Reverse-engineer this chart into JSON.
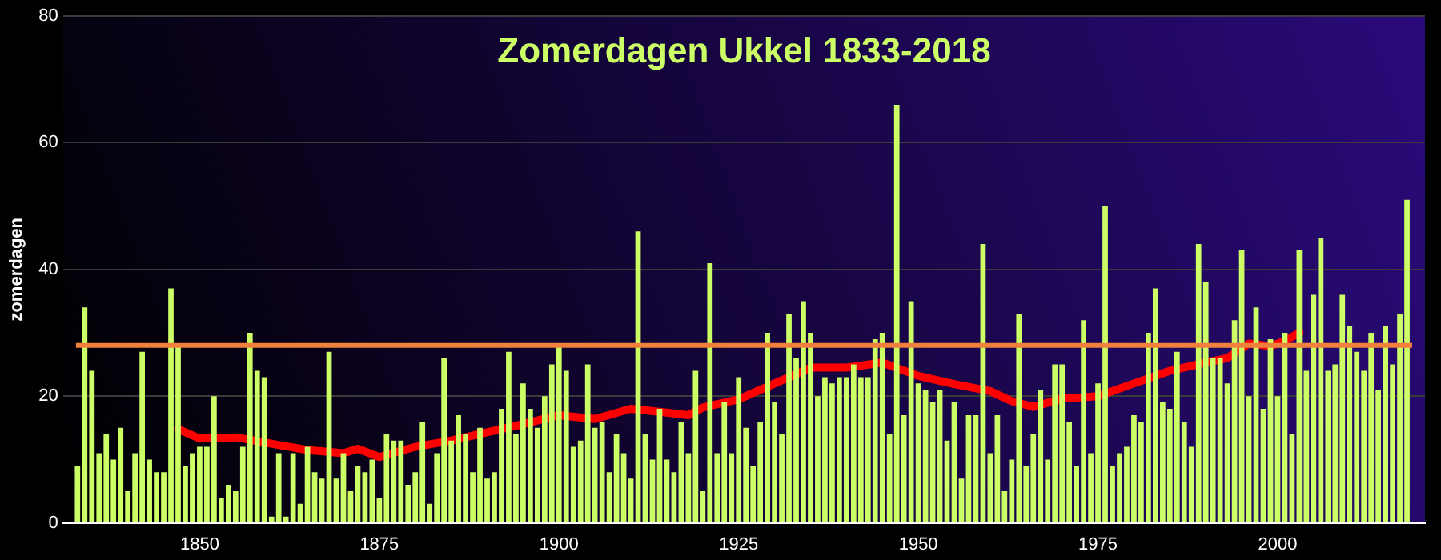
{
  "chart_data": {
    "type": "bar",
    "title": "Zomerdagen Ukkel 1833-2018",
    "ylabel": "zomerdagen",
    "xlim": [
      1831,
      2020.5
    ],
    "xticks": [
      1850,
      1875,
      1900,
      1925,
      1950,
      1975,
      2000
    ],
    "ylim": [
      0,
      80
    ],
    "yticks": [
      0,
      20,
      40,
      60,
      80
    ],
    "grid": "y",
    "legend": false,
    "x": [
      1833,
      1834,
      1835,
      1836,
      1837,
      1838,
      1839,
      1840,
      1841,
      1842,
      1843,
      1844,
      1845,
      1846,
      1847,
      1848,
      1849,
      1850,
      1851,
      1852,
      1853,
      1854,
      1855,
      1856,
      1857,
      1858,
      1859,
      1860,
      1861,
      1862,
      1863,
      1864,
      1865,
      1866,
      1867,
      1868,
      1869,
      1870,
      1871,
      1872,
      1873,
      1874,
      1875,
      1876,
      1877,
      1878,
      1879,
      1880,
      1881,
      1882,
      1883,
      1884,
      1885,
      1886,
      1887,
      1888,
      1889,
      1890,
      1891,
      1892,
      1893,
      1894,
      1895,
      1896,
      1897,
      1898,
      1899,
      1900,
      1901,
      1902,
      1903,
      1904,
      1905,
      1906,
      1907,
      1908,
      1909,
      1910,
      1911,
      1912,
      1913,
      1914,
      1915,
      1916,
      1917,
      1918,
      1919,
      1920,
      1921,
      1922,
      1923,
      1924,
      1925,
      1926,
      1927,
      1928,
      1929,
      1930,
      1931,
      1932,
      1933,
      1934,
      1935,
      1936,
      1937,
      1938,
      1939,
      1940,
      1941,
      1942,
      1943,
      1944,
      1945,
      1946,
      1947,
      1948,
      1949,
      1950,
      1951,
      1952,
      1953,
      1954,
      1955,
      1956,
      1957,
      1958,
      1959,
      1960,
      1961,
      1962,
      1963,
      1964,
      1965,
      1966,
      1967,
      1968,
      1969,
      1970,
      1971,
      1972,
      1973,
      1974,
      1975,
      1976,
      1977,
      1978,
      1979,
      1980,
      1981,
      1982,
      1983,
      1984,
      1985,
      1986,
      1987,
      1988,
      1989,
      1990,
      1991,
      1992,
      1993,
      1994,
      1995,
      1996,
      1997,
      1998,
      1999,
      2000,
      2001,
      2002,
      2003,
      2004,
      2005,
      2006,
      2007,
      2008,
      2009,
      2010,
      2011,
      2012,
      2013,
      2014,
      2015,
      2016,
      2017,
      2018
    ],
    "series": [
      {
        "color": "#ccff66",
        "values": [
          9,
          34,
          24,
          11,
          14,
          10,
          15,
          5,
          11,
          27,
          10,
          8,
          8,
          37,
          28,
          9,
          11,
          12,
          12,
          20,
          4,
          6,
          5,
          12,
          30,
          24,
          23,
          1,
          11,
          1,
          11,
          3,
          12,
          8,
          7,
          27,
          7,
          11,
          5,
          9,
          8,
          10,
          4,
          14,
          13,
          13,
          6,
          8,
          16,
          3,
          11,
          26,
          13,
          17,
          14,
          8,
          15,
          7,
          8,
          18,
          27,
          14,
          22,
          18,
          15,
          20,
          25,
          28,
          24,
          12,
          13,
          25,
          15,
          16,
          8,
          14,
          11,
          7,
          46,
          14,
          10,
          18,
          10,
          8,
          16,
          11,
          24,
          5,
          41,
          11,
          19,
          11,
          23,
          15,
          9,
          16,
          30,
          19,
          14,
          33,
          26,
          35,
          30,
          20,
          23,
          22,
          23,
          23,
          25,
          23,
          23,
          29,
          30,
          14,
          66,
          17,
          35,
          22,
          21,
          19,
          21,
          13,
          19,
          7,
          17,
          17,
          44,
          11,
          17,
          5,
          10,
          33,
          9,
          14,
          21,
          10,
          25,
          25,
          16,
          9,
          32,
          11,
          22,
          50,
          9,
          11,
          12,
          17,
          16,
          30,
          37,
          19,
          18,
          27,
          16,
          12,
          44,
          38,
          26,
          26,
          22,
          32,
          43,
          20,
          34,
          18,
          29,
          20,
          30,
          14,
          43,
          24,
          36,
          45,
          24,
          25,
          36,
          31,
          27,
          24,
          30,
          21,
          31,
          25,
          33,
          51
        ]
      },
      {
        "type": "line",
        "color": "#ff0000",
        "x": [
          1847,
          1850,
          1855,
          1860,
          1865,
          1870,
          1872,
          1875,
          1880,
          1885,
          1890,
          1895,
          1900,
          1905,
          1910,
          1915,
          1918,
          1920,
          1925,
          1930,
          1935,
          1940,
          1945,
          1950,
          1955,
          1960,
          1963,
          1966,
          1970,
          1975,
          1980,
          1985,
          1990,
          1993,
          1996,
          1999,
          2001,
          2003
        ],
        "values": [
          14.8,
          13.3,
          13.5,
          12.5,
          11.5,
          11,
          11.7,
          10.4,
          12,
          13,
          14.3,
          15.6,
          17,
          16.4,
          18,
          17.4,
          17,
          18.2,
          19.5,
          22,
          24.5,
          24.5,
          25.3,
          23.2,
          21.9,
          20.8,
          19.2,
          18.3,
          19.6,
          20,
          22,
          24,
          25.3,
          26,
          28.3,
          27.9,
          28.7,
          30
        ]
      }
    ],
    "ref_lines": [
      {
        "axis": "y",
        "value": 28,
        "color": "#f0803c"
      }
    ]
  }
}
